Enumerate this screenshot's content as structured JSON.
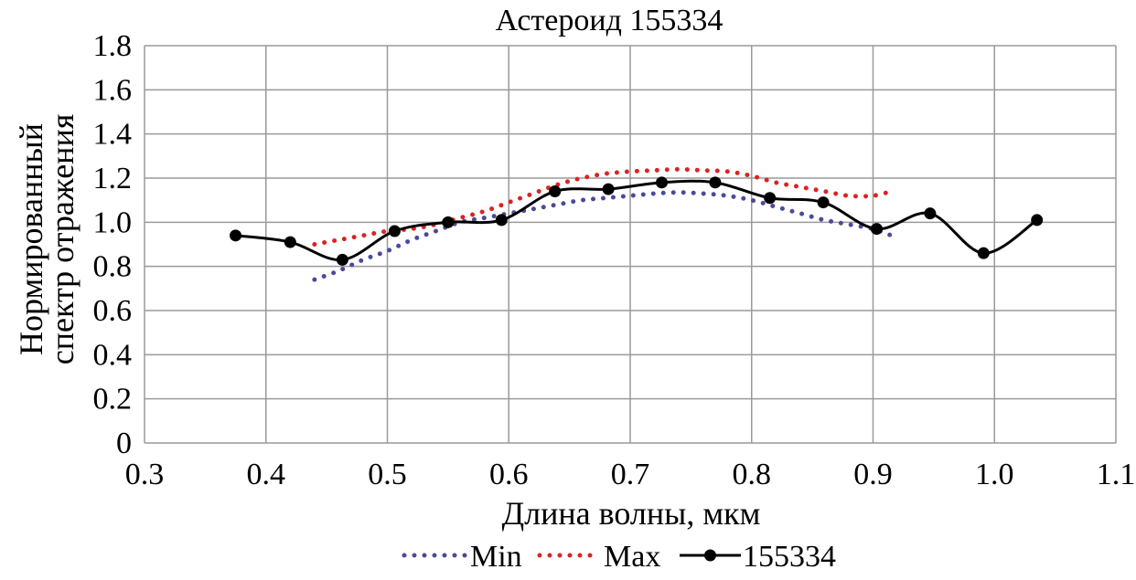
{
  "chart_data": {
    "type": "line",
    "title": "Астероид 155334",
    "xlabel": "Длина волны, мкм",
    "ylabel_lines": [
      "Нормированный",
      "спектр отражения"
    ],
    "xlim": [
      0.3,
      1.1
    ],
    "ylim": [
      0,
      1.8
    ],
    "x_ticks": [
      0.3,
      0.4,
      0.5,
      0.6,
      0.7,
      0.8,
      0.9,
      1.0,
      1.1
    ],
    "x_tick_labels": [
      "0.3",
      "0.4",
      "0.5",
      "0.6",
      "0.7",
      "0.8",
      "0.9",
      "1.0",
      "1.1"
    ],
    "y_ticks": [
      0,
      0.2,
      0.4,
      0.6,
      0.8,
      1.0,
      1.2,
      1.4,
      1.6,
      1.8
    ],
    "y_tick_labels": [
      "0",
      "0.2",
      "0.4",
      "0.6",
      "0.8",
      "1.0",
      "1.2",
      "1.4",
      "1.6",
      "1.8"
    ],
    "grid": true,
    "legend_position": "bottom",
    "series": [
      {
        "name": "Min",
        "color": "#4a4a9a",
        "style": "dotted",
        "x": [
          0.44,
          0.46,
          0.48,
          0.5,
          0.52,
          0.54,
          0.56,
          0.58,
          0.6,
          0.62,
          0.64,
          0.66,
          0.68,
          0.7,
          0.72,
          0.74,
          0.76,
          0.78,
          0.8,
          0.82,
          0.84,
          0.86,
          0.88,
          0.9,
          0.915
        ],
        "y": [
          0.74,
          0.78,
          0.83,
          0.87,
          0.92,
          0.96,
          1.0,
          1.02,
          1.04,
          1.06,
          1.08,
          1.1,
          1.11,
          1.12,
          1.13,
          1.135,
          1.13,
          1.12,
          1.1,
          1.07,
          1.04,
          1.01,
          0.99,
          0.97,
          0.94
        ]
      },
      {
        "name": "Max",
        "color": "#dd2222",
        "style": "dotted",
        "x": [
          0.44,
          0.46,
          0.48,
          0.5,
          0.52,
          0.54,
          0.56,
          0.58,
          0.6,
          0.62,
          0.64,
          0.66,
          0.68,
          0.7,
          0.72,
          0.74,
          0.76,
          0.78,
          0.8,
          0.82,
          0.84,
          0.86,
          0.88,
          0.9,
          0.915
        ],
        "y": [
          0.9,
          0.92,
          0.94,
          0.96,
          0.97,
          0.99,
          1.02,
          1.05,
          1.09,
          1.13,
          1.17,
          1.2,
          1.22,
          1.23,
          1.235,
          1.24,
          1.235,
          1.23,
          1.21,
          1.18,
          1.16,
          1.14,
          1.12,
          1.12,
          1.14
        ]
      },
      {
        "name": "155334",
        "color": "#000000",
        "style": "solid",
        "x": [
          0.375,
          0.42,
          0.463,
          0.506,
          0.55,
          0.594,
          0.638,
          0.682,
          0.726,
          0.77,
          0.815,
          0.859,
          0.903,
          0.947,
          0.991,
          1.035
        ],
        "y": [
          0.94,
          0.91,
          0.83,
          0.96,
          1.0,
          1.01,
          1.14,
          1.15,
          1.18,
          1.18,
          1.11,
          1.09,
          0.97,
          1.04,
          0.86,
          1.01
        ]
      }
    ]
  }
}
